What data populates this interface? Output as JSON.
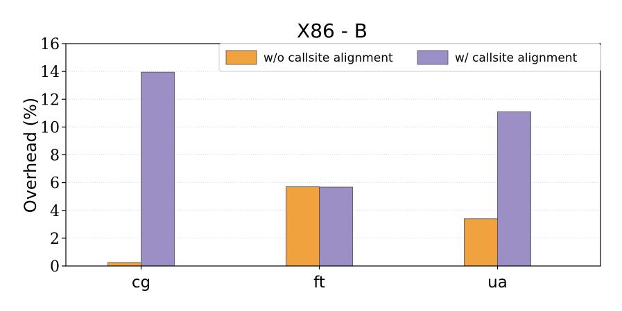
{
  "chart_data": {
    "type": "bar",
    "title": "X86 - B",
    "xlabel": "",
    "ylabel": "Overhead (%)",
    "categories": [
      "cg",
      "ft",
      "ua"
    ],
    "ylim": [
      0,
      16
    ],
    "yticks": [
      0,
      2,
      4,
      6,
      8,
      10,
      12,
      14,
      16
    ],
    "grid": true,
    "legend_position": "top-right",
    "series": [
      {
        "name": "w/o callsite alignment",
        "color": "#f0a23e",
        "values": [
          0.25,
          5.7,
          3.4
        ]
      },
      {
        "name": "w/ callsite alignment",
        "color": "#9b8fc6",
        "values": [
          13.95,
          5.68,
          11.1
        ]
      }
    ]
  }
}
